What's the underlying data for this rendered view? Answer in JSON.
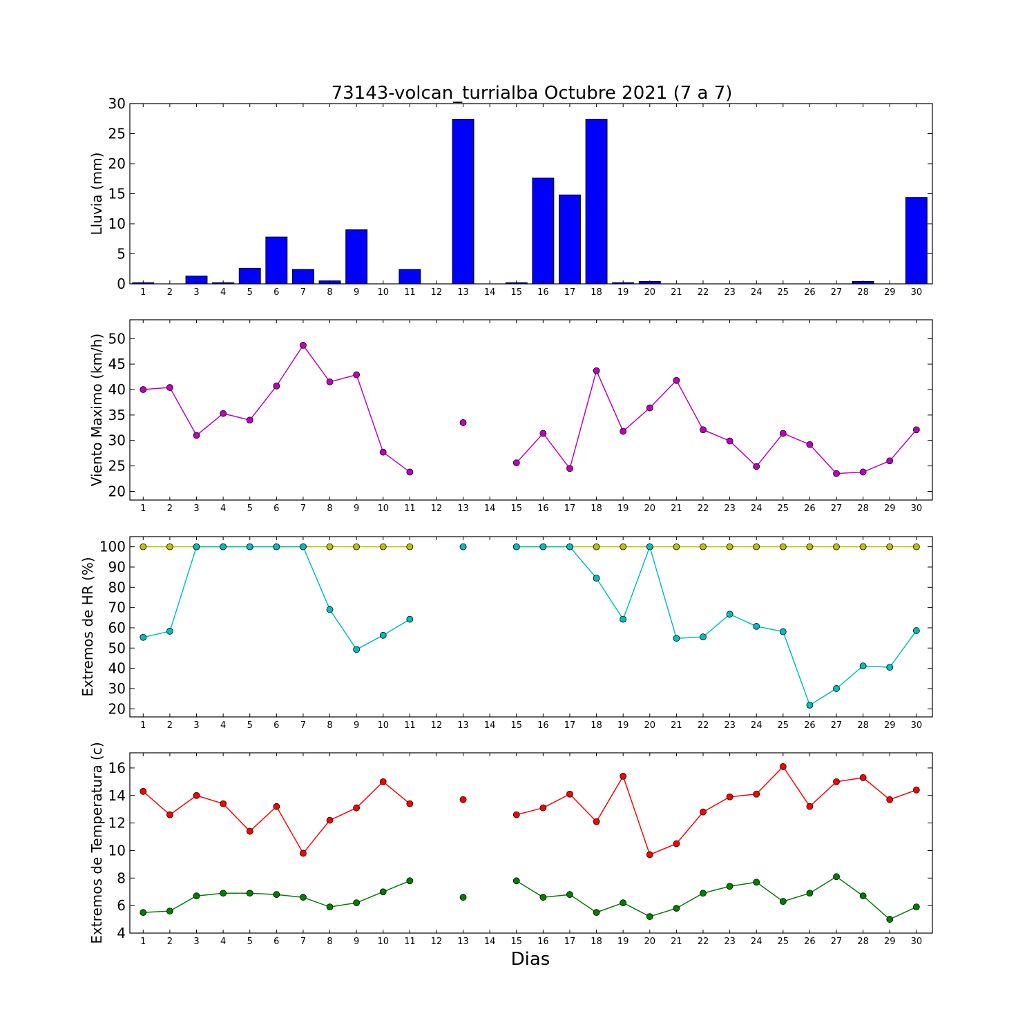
{
  "chart_data": {
    "title": "73143-volcan_turrialba Octubre 2021  (7 a 7)",
    "xlabel": "Dias",
    "x": [
      1,
      2,
      3,
      4,
      5,
      6,
      7,
      8,
      9,
      10,
      11,
      12,
      13,
      14,
      15,
      16,
      17,
      18,
      19,
      20,
      21,
      22,
      23,
      24,
      25,
      26,
      27,
      28,
      29,
      30
    ],
    "panels": [
      {
        "type": "bar",
        "ylabel": "Lluvia (mm)",
        "ylim": [
          0,
          30
        ],
        "yticks": [
          0,
          5,
          10,
          15,
          20,
          25,
          30
        ],
        "series": [
          {
            "color": "#0000ff",
            "values": [
              0.2,
              0.0,
              1.3,
              0.2,
              2.6,
              7.8,
              2.4,
              0.5,
              9.0,
              0.0,
              2.4,
              0.0,
              27.4,
              0.0,
              0.2,
              17.6,
              14.8,
              27.4,
              0.2,
              0.4,
              0.0,
              0.0,
              0.0,
              0.0,
              0.0,
              0.0,
              0.0,
              0.4,
              0.0,
              14.4
            ]
          }
        ]
      },
      {
        "type": "line",
        "ylabel": "Viento Maximo (km/h)",
        "ylim": [
          18.3,
          53.7
        ],
        "yticks": [
          20,
          25,
          30,
          35,
          40,
          45,
          50
        ],
        "series": [
          {
            "color": "#bf00bf",
            "values": [
              40.0,
              40.4,
              31.0,
              35.3,
              34.0,
              40.7,
              48.7,
              41.5,
              42.9,
              27.7,
              23.8,
              null,
              33.5,
              null,
              25.6,
              31.4,
              24.5,
              43.7,
              31.8,
              36.4,
              41.8,
              32.1,
              29.9,
              24.9,
              31.4,
              29.2,
              23.5,
              23.8,
              26.0,
              32.1
            ]
          }
        ]
      },
      {
        "type": "line",
        "ylabel": "Extremos de HR (%)",
        "ylim": [
          16,
          105
        ],
        "yticks": [
          20,
          30,
          40,
          50,
          60,
          70,
          80,
          90,
          100
        ],
        "series": [
          {
            "color": "#bfbf00",
            "values": [
              100,
              100,
              100,
              100,
              100,
              100,
              100,
              100,
              100,
              100,
              100,
              null,
              100,
              null,
              100,
              100,
              100,
              100,
              100,
              100,
              100,
              100,
              100,
              100,
              100,
              100,
              100,
              100,
              100,
              100
            ]
          },
          {
            "color": "#00bfbf",
            "values": [
              55.3,
              58.3,
              100,
              100,
              100,
              100,
              100,
              69.0,
              49.3,
              56.3,
              64.2,
              null,
              100,
              null,
              100,
              100,
              100,
              84.5,
              64.2,
              100,
              54.8,
              55.5,
              66.7,
              60.7,
              58.1,
              21.8,
              30.0,
              41.2,
              40.5,
              58.6
            ]
          }
        ]
      },
      {
        "type": "line",
        "ylabel": "Extremos de Temperatura (c)",
        "ylim": [
          4,
          17.1
        ],
        "yticks": [
          4,
          6,
          8,
          10,
          12,
          14,
          16
        ],
        "series": [
          {
            "color": "#ff0000",
            "values": [
              14.3,
              12.6,
              14.0,
              13.4,
              11.4,
              13.2,
              9.8,
              12.2,
              13.1,
              15.0,
              13.4,
              null,
              13.7,
              null,
              12.6,
              13.1,
              14.1,
              12.1,
              15.4,
              9.7,
              10.5,
              12.8,
              13.9,
              14.1,
              16.1,
              13.2,
              15.0,
              15.3,
              13.7,
              14.4
            ]
          },
          {
            "color": "#007f00",
            "values": [
              5.5,
              5.6,
              6.7,
              6.9,
              6.9,
              6.8,
              6.6,
              5.9,
              6.2,
              7.0,
              7.8,
              null,
              6.6,
              null,
              7.8,
              6.6,
              6.8,
              5.5,
              6.2,
              5.2,
              5.8,
              6.9,
              7.4,
              7.7,
              6.3,
              6.9,
              8.1,
              6.7,
              5.0,
              5.9
            ]
          }
        ]
      }
    ]
  }
}
